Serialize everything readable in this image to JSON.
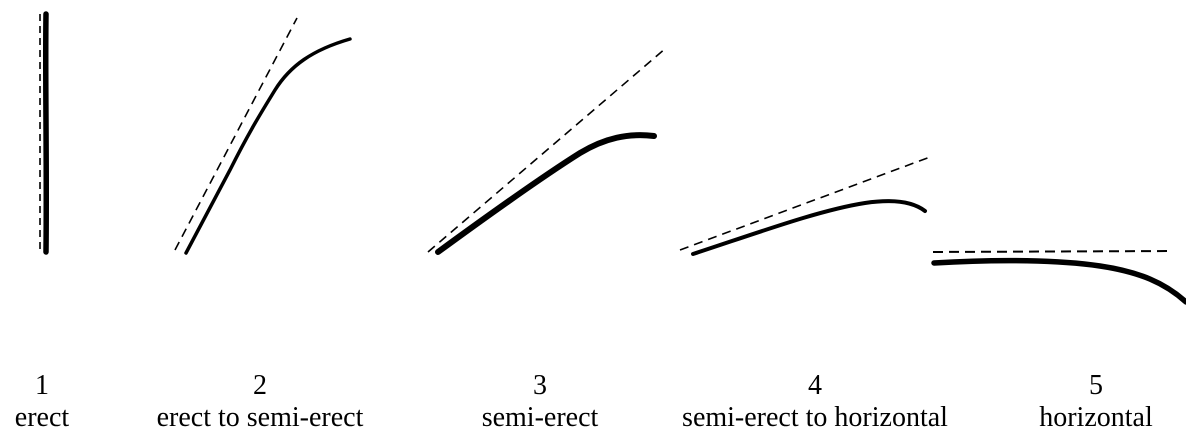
{
  "diagram": {
    "stages": [
      {
        "number": "1",
        "label": "erect"
      },
      {
        "number": "2",
        "label": "erect to semi-erect"
      },
      {
        "number": "3",
        "label": "semi-erect"
      },
      {
        "number": "4",
        "label": "semi-erect to horizontal"
      },
      {
        "number": "5",
        "label": "horizontal"
      }
    ],
    "colors": {
      "stroke": "#000000",
      "background": "#ffffff"
    }
  }
}
